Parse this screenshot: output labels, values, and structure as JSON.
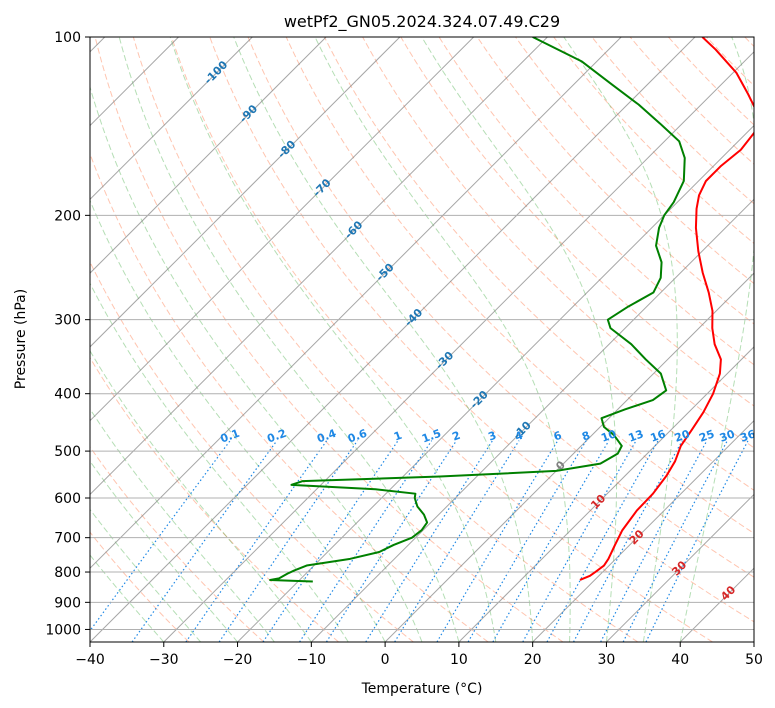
{
  "chart_data": {
    "type": "skew-t",
    "title": "wetPf2_GN05.2024.324.07.49.C29",
    "xlabel": "Temperature (°C)",
    "ylabel": "Pressure (hPa)",
    "xlim": [
      -40,
      50
    ],
    "ylim_hpa": [
      1050,
      100
    ],
    "y_scale": "log",
    "grid": true,
    "x_ticks": [
      "−40",
      "−30",
      "−20",
      "−10",
      "0",
      "10",
      "20",
      "30",
      "40",
      "50"
    ],
    "x_tick_values": [
      -40,
      -30,
      -20,
      -10,
      0,
      10,
      20,
      30,
      40,
      50
    ],
    "y_ticks": [
      "100",
      "200",
      "300",
      "400",
      "500",
      "600",
      "700",
      "800",
      "900",
      "1000"
    ],
    "y_tick_values": [
      100,
      200,
      300,
      400,
      500,
      600,
      700,
      800,
      900,
      1000
    ],
    "colors": {
      "temperature": "#ff0000",
      "dewpoint": "#008000",
      "dry_adiabat": "#ff7f50",
      "moist_adiabat": "#2ca02c",
      "mixing_ratio": "#1e88e5",
      "isotherm": "#808080",
      "dry_label": "#d62728",
      "moist_label": "#1f77b4",
      "zero_label": "#808080",
      "mix_label": "#1e88e5"
    },
    "series": [
      {
        "key": "temperature",
        "points": [
          [
            825,
            18.0
          ],
          [
            812,
            18.8
          ],
          [
            800,
            19.0
          ],
          [
            780,
            19.3
          ],
          [
            760,
            19.0
          ],
          [
            720,
            18.0
          ],
          [
            680,
            17.0
          ],
          [
            630,
            16.3
          ],
          [
            590,
            16.2
          ],
          [
            550,
            15.6
          ],
          [
            520,
            14.8
          ],
          [
            490,
            13.5
          ],
          [
            460,
            12.8
          ],
          [
            430,
            12.0
          ],
          [
            400,
            10.8
          ],
          [
            370,
            9.0
          ],
          [
            350,
            7.2
          ],
          [
            330,
            4.3
          ],
          [
            310,
            1.8
          ],
          [
            290,
            -0.5
          ],
          [
            270,
            -3.5
          ],
          [
            250,
            -7.0
          ],
          [
            230,
            -10.5
          ],
          [
            210,
            -14.0
          ],
          [
            195,
            -16.5
          ],
          [
            185,
            -18.0
          ],
          [
            175,
            -19.0
          ],
          [
            165,
            -19.0
          ],
          [
            155,
            -18.5
          ],
          [
            145,
            -19.0
          ],
          [
            135,
            -21.0
          ],
          [
            125,
            -25.0
          ],
          [
            115,
            -29.5
          ],
          [
            105,
            -35.5
          ],
          [
            100,
            -39.0
          ]
        ]
      },
      {
        "key": "dewpoint",
        "points": [
          [
            830,
            -18.0
          ],
          [
            825,
            -24.0
          ],
          [
            820,
            -23.0
          ],
          [
            805,
            -22.5
          ],
          [
            795,
            -22.0
          ],
          [
            780,
            -21.0
          ],
          [
            760,
            -16.0
          ],
          [
            740,
            -13.0
          ],
          [
            720,
            -12.0
          ],
          [
            700,
            -10.5
          ],
          [
            680,
            -10.2
          ],
          [
            660,
            -10.5
          ],
          [
            640,
            -12.0
          ],
          [
            620,
            -14.0
          ],
          [
            600,
            -15.5
          ],
          [
            590,
            -16.0
          ],
          [
            580,
            -22.0
          ],
          [
            570,
            -34.0
          ],
          [
            562,
            -33.0
          ],
          [
            552,
            -15.0
          ],
          [
            540,
            0.0
          ],
          [
            525,
            5.0
          ],
          [
            505,
            6.0
          ],
          [
            490,
            5.5
          ],
          [
            470,
            3.0
          ],
          [
            455,
            0.5
          ],
          [
            440,
            -1.0
          ],
          [
            425,
            1.0
          ],
          [
            410,
            3.5
          ],
          [
            395,
            4.0
          ],
          [
            370,
            1.0
          ],
          [
            350,
            -3.0
          ],
          [
            330,
            -7.0
          ],
          [
            310,
            -12.0
          ],
          [
            300,
            -13.5
          ],
          [
            285,
            -12.5
          ],
          [
            270,
            -11.0
          ],
          [
            255,
            -12.0
          ],
          [
            240,
            -14.0
          ],
          [
            225,
            -17.0
          ],
          [
            210,
            -19.0
          ],
          [
            200,
            -20.0
          ],
          [
            190,
            -20.5
          ],
          [
            175,
            -22.0
          ],
          [
            160,
            -25.0
          ],
          [
            150,
            -28.0
          ],
          [
            140,
            -33.0
          ],
          [
            130,
            -38.5
          ],
          [
            120,
            -45.0
          ],
          [
            110,
            -52.0
          ],
          [
            100,
            -62.0
          ]
        ]
      }
    ],
    "dry_adiabat_labels": [
      "10",
      "20",
      "30",
      "40"
    ],
    "moist_adiabat_labels": [
      "-100",
      "-90",
      "-80",
      "-70",
      "-60",
      "-50",
      "-40",
      "-30",
      "-20",
      "-10"
    ],
    "freezing_label": "0",
    "mixing_ratio_lines": [
      0.1,
      0.2,
      0.4,
      0.6,
      1,
      1.5,
      2,
      3,
      4,
      6,
      8,
      10,
      13,
      16,
      20,
      25,
      30,
      36
    ],
    "mixing_ratio_labels": [
      "0.1",
      "0.2",
      "0.4",
      "0.6",
      "1",
      "1.5",
      "2",
      "3",
      "4",
      "6",
      "8",
      "10",
      "13",
      "16",
      "20",
      "25",
      "30",
      "36"
    ],
    "mixing_ratio_label_pressure": 480
  }
}
